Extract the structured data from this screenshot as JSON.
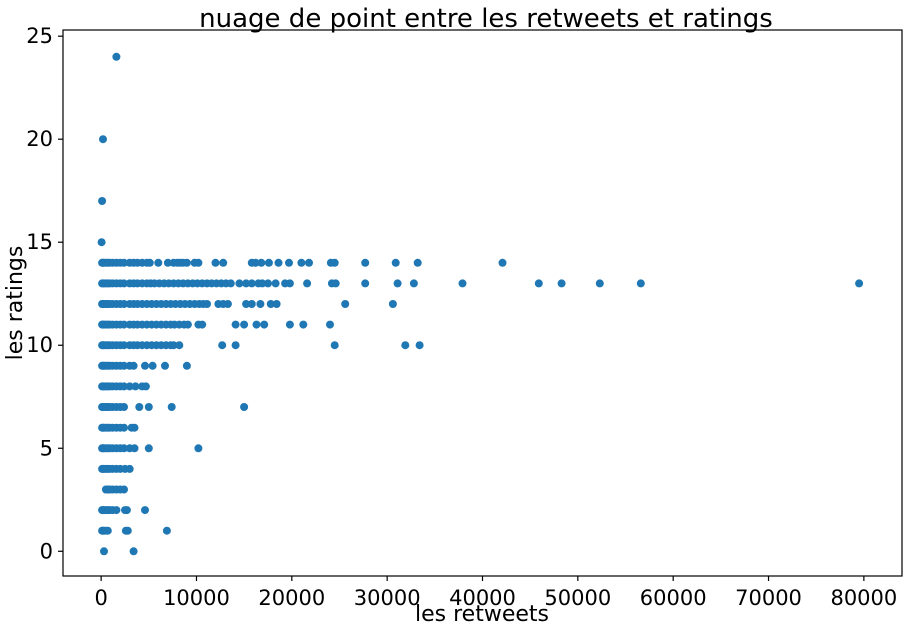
{
  "chart_data": {
    "type": "scatter",
    "title": "nuage de point entre les retweets et ratings",
    "xlabel": "les retweets",
    "ylabel": "les ratings",
    "xlim": [
      -4000,
      84000
    ],
    "ylim": [
      -1.2,
      25.3
    ],
    "xticks": [
      0,
      10000,
      20000,
      30000,
      40000,
      50000,
      60000,
      70000,
      80000
    ],
    "yticks": [
      0,
      5,
      10,
      15,
      20,
      25
    ],
    "grid": false,
    "legend": "none",
    "color": "#1f77b4",
    "x": [
      300,
      3400,
      1600,
      200,
      100,
      50,
      100,
      200,
      300,
      500,
      700,
      900,
      1200,
      1600,
      2000,
      2400,
      3000,
      3400,
      3800,
      4300,
      4800,
      5100,
      6000,
      7000,
      7600,
      8000,
      8300,
      8600,
      9000,
      9800,
      10200,
      12000,
      12800,
      15800,
      16200,
      16800,
      17600,
      18600,
      19700,
      21000,
      21800,
      24100,
      24500,
      27700,
      30900,
      33200,
      42100,
      100,
      200,
      300,
      500,
      700,
      900,
      1200,
      1600,
      2000,
      2400,
      3000,
      3400,
      3800,
      4300,
      4800,
      5200,
      5600,
      6100,
      6600,
      7100,
      7600,
      8100,
      8600,
      9100,
      9600,
      10100,
      10600,
      11100,
      11600,
      12100,
      12600,
      13100,
      13600,
      14500,
      15200,
      15800,
      16500,
      16900,
      17500,
      18300,
      19300,
      19800,
      21600,
      24200,
      24600,
      27700,
      31100,
      32800,
      37900,
      45900,
      48300,
      52300,
      56600,
      79500,
      100,
      200,
      300,
      500,
      700,
      900,
      1200,
      1600,
      2000,
      2400,
      3000,
      3400,
      3800,
      4300,
      4800,
      5300,
      5800,
      6300,
      6800,
      7300,
      7800,
      8300,
      8800,
      9300,
      9800,
      10300,
      10700,
      11100,
      12300,
      12800,
      13300,
      15200,
      15800,
      16700,
      17800,
      18400,
      25600,
      30600,
      100,
      200,
      300,
      500,
      700,
      900,
      1200,
      1600,
      2000,
      2400,
      3000,
      3400,
      3800,
      4300,
      4800,
      5300,
      5800,
      6300,
      6800,
      7300,
      7700,
      8200,
      8700,
      9100,
      10200,
      10600,
      14100,
      15000,
      16300,
      17100,
      19800,
      21200,
      24000,
      100,
      200,
      300,
      500,
      700,
      900,
      1200,
      1600,
      2000,
      2400,
      3000,
      3400,
      3800,
      4300,
      4800,
      5300,
      5800,
      6300,
      6800,
      7300,
      7600,
      8200,
      12700,
      14100,
      24500,
      31900,
      33400,
      100,
      200,
      300,
      500,
      700,
      900,
      1200,
      1600,
      2000,
      2400,
      3000,
      3400,
      4600,
      5400,
      6700,
      9000,
      100,
      200,
      300,
      500,
      700,
      900,
      1200,
      1600,
      2000,
      2400,
      3000,
      3600,
      4300,
      4700,
      100,
      200,
      300,
      500,
      700,
      900,
      1200,
      1600,
      2000,
      2400,
      4000,
      5000,
      7400,
      15000,
      100,
      200,
      300,
      500,
      700,
      900,
      1200,
      1600,
      2000,
      2400,
      3200,
      3500,
      100,
      200,
      300,
      500,
      700,
      900,
      1200,
      1600,
      2000,
      2400,
      3000,
      3500,
      5000,
      10200,
      100,
      200,
      300,
      500,
      700,
      900,
      1200,
      1600,
      2000,
      2500,
      3000,
      500,
      700,
      900,
      1200,
      1600,
      2000,
      2400,
      100,
      200,
      300,
      500,
      700,
      900,
      1200,
      1600,
      2500,
      2700,
      4600,
      100,
      200,
      300,
      500,
      700,
      2600,
      2800,
      6900
    ],
    "y": [
      0,
      0,
      24,
      20,
      17,
      15,
      14,
      14,
      14,
      14,
      14,
      14,
      14,
      14,
      14,
      14,
      14,
      14,
      14,
      14,
      14,
      14,
      14,
      14,
      14,
      14,
      14,
      14,
      14,
      14,
      14,
      14,
      14,
      14,
      14,
      14,
      14,
      14,
      14,
      14,
      14,
      14,
      14,
      14,
      14,
      14,
      14,
      13,
      13,
      13,
      13,
      13,
      13,
      13,
      13,
      13,
      13,
      13,
      13,
      13,
      13,
      13,
      13,
      13,
      13,
      13,
      13,
      13,
      13,
      13,
      13,
      13,
      13,
      13,
      13,
      13,
      13,
      13,
      13,
      13,
      13,
      13,
      13,
      13,
      13,
      13,
      13,
      13,
      13,
      13,
      13,
      13,
      13,
      13,
      13,
      13,
      13,
      13,
      13,
      13,
      13,
      12,
      12,
      12,
      12,
      12,
      12,
      12,
      12,
      12,
      12,
      12,
      12,
      12,
      12,
      12,
      12,
      12,
      12,
      12,
      12,
      12,
      12,
      12,
      12,
      12,
      12,
      12,
      12,
      12,
      12,
      12,
      12,
      12,
      12,
      12,
      12,
      12,
      12,
      11,
      11,
      11,
      11,
      11,
      11,
      11,
      11,
      11,
      11,
      11,
      11,
      11,
      11,
      11,
      11,
      11,
      11,
      11,
      11,
      11,
      11,
      11,
      11,
      11,
      11,
      11,
      11,
      11,
      11,
      11,
      11,
      11,
      10,
      10,
      10,
      10,
      10,
      10,
      10,
      10,
      10,
      10,
      10,
      10,
      10,
      10,
      10,
      10,
      10,
      10,
      10,
      10,
      10,
      10,
      10,
      10,
      10,
      10,
      10,
      9,
      9,
      9,
      9,
      9,
      9,
      9,
      9,
      9,
      9,
      9,
      9,
      9,
      9,
      9,
      9,
      8,
      8,
      8,
      8,
      8,
      8,
      8,
      8,
      8,
      8,
      8,
      8,
      8,
      8,
      7,
      7,
      7,
      7,
      7,
      7,
      7,
      7,
      7,
      7,
      7,
      7,
      7,
      7,
      6,
      6,
      6,
      6,
      6,
      6,
      6,
      6,
      6,
      6,
      6,
      6,
      5,
      5,
      5,
      5,
      5,
      5,
      5,
      5,
      5,
      5,
      5,
      5,
      5,
      5,
      4,
      4,
      4,
      4,
      4,
      4,
      4,
      4,
      4,
      4,
      4,
      3,
      3,
      3,
      3,
      3,
      3,
      3,
      2,
      2,
      2,
      2,
      2,
      2,
      2,
      2,
      2,
      2,
      2,
      1,
      1,
      1,
      1,
      1,
      1,
      1,
      1
    ]
  }
}
